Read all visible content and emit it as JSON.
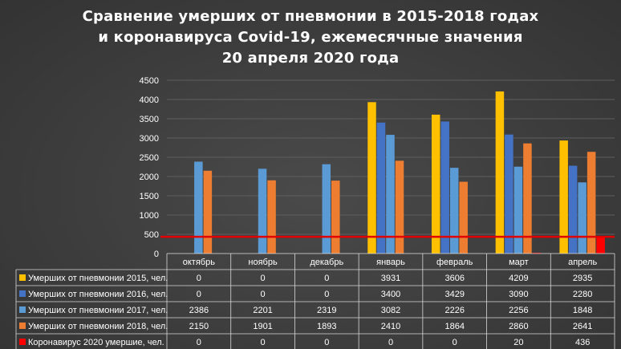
{
  "chart_data": {
    "type": "bar",
    "title_lines": [
      "Сравнение умерших от пневмонии в 2015-2018 годах",
      "и коронавируса Covid-19, ежемесячные значения",
      "20 апреля 2020 года"
    ],
    "categories": [
      "октябрь",
      "ноябрь",
      "декабрь",
      "январь",
      "февраль",
      "март",
      "апрель"
    ],
    "ylim": [
      0,
      4500
    ],
    "yticks": [
      0,
      500,
      1000,
      1500,
      2000,
      2500,
      3000,
      3500,
      4000,
      4500
    ],
    "reference_line": 436,
    "colors": {
      "reference_line": "#e00000",
      "table_border": "#d9d9d9"
    },
    "series": [
      {
        "name": "Умерших от пневмонии 2015, чел.",
        "color": "#ffc000",
        "values": [
          0,
          0,
          0,
          3931,
          3606,
          4209,
          2935
        ]
      },
      {
        "name": "Умерших от пневмонии 2016, чел.",
        "color": "#4472c4",
        "values": [
          0,
          0,
          0,
          3400,
          3429,
          3090,
          2280
        ]
      },
      {
        "name": "Умерших от пневмонии 2017, чел.",
        "color": "#5b9bd5",
        "values": [
          2386,
          2201,
          2319,
          3082,
          2226,
          2256,
          1848
        ]
      },
      {
        "name": "Умерших от пневмонии 2018, чел.",
        "color": "#ed7d31",
        "values": [
          2150,
          1901,
          1893,
          2410,
          1864,
          2860,
          2641
        ]
      },
      {
        "name": "Коронавирус 2020 умершие, чел.",
        "color": "#ff0000",
        "values": [
          0,
          0,
          0,
          0,
          0,
          20,
          436
        ]
      }
    ]
  }
}
